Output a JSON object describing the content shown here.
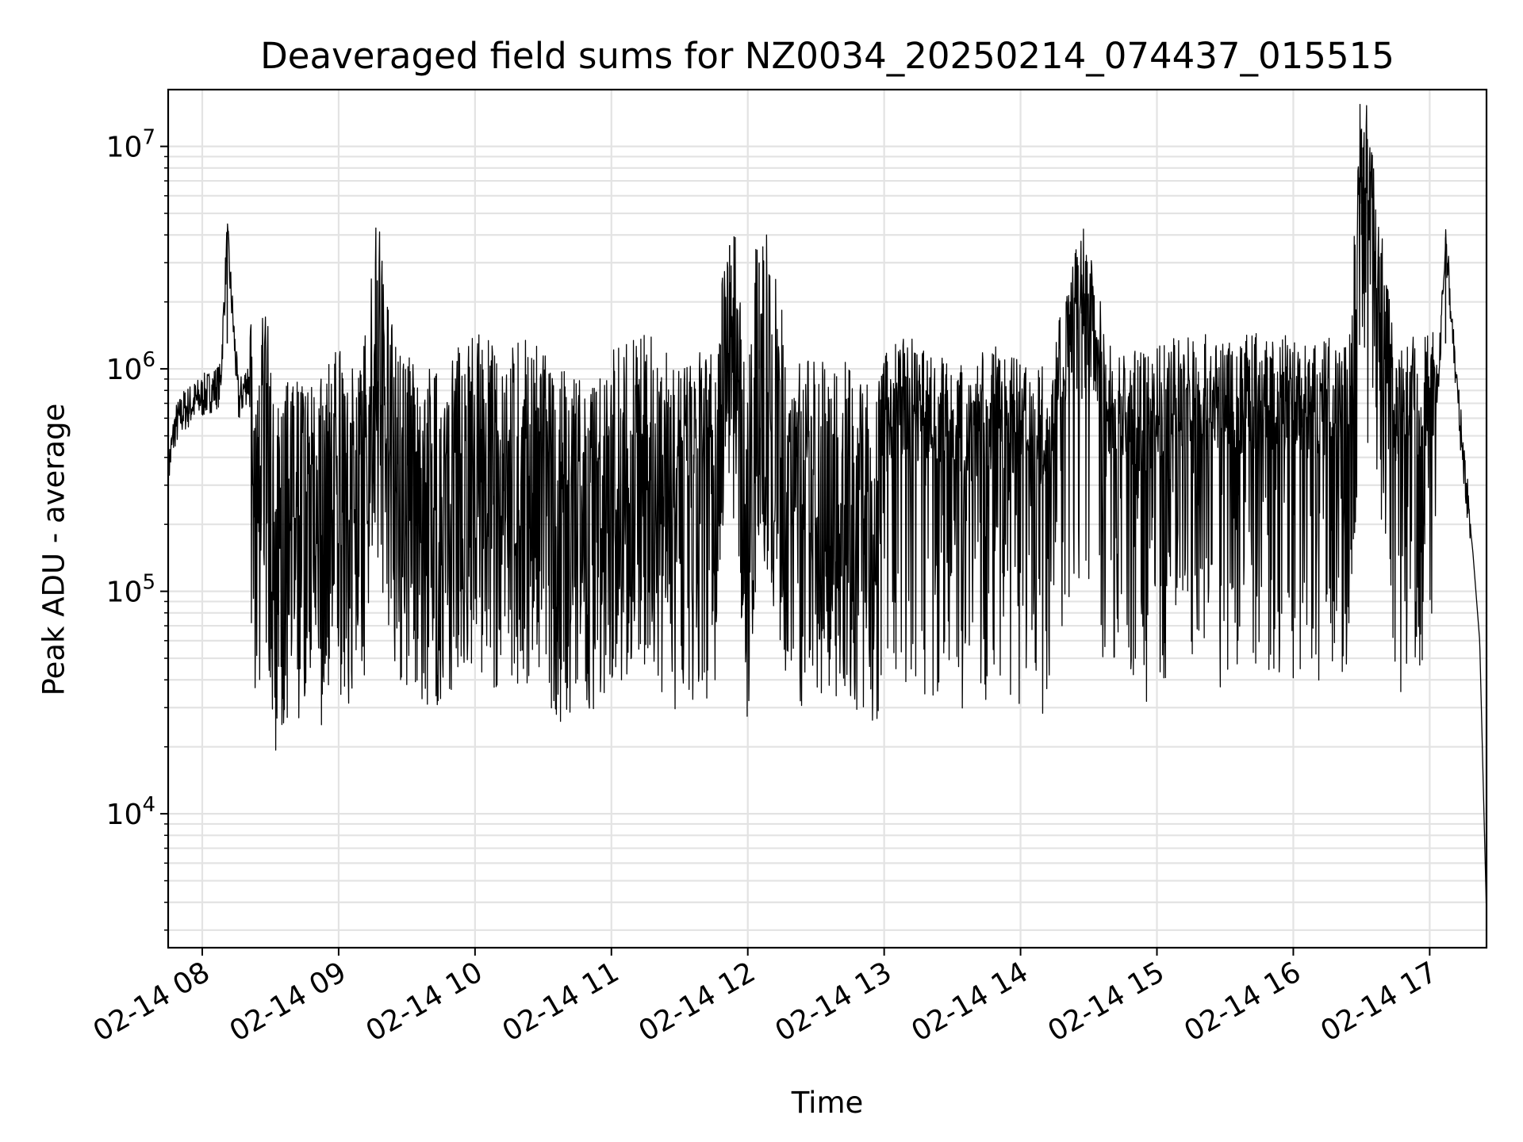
{
  "chart_data": {
    "type": "line",
    "title": "Deaveraged field sums for NZ0034_20250214_074437_015515",
    "xlabel": "Time",
    "ylabel": "Peak ADU - average",
    "yscale": "log",
    "ylim": [
      2500,
      18000000
    ],
    "xlim": [
      "2025-02-14 07:45",
      "2025-02-14 17:25"
    ],
    "x_tick_labels": [
      "02-14 08",
      "02-14 09",
      "02-14 10",
      "02-14 11",
      "02-14 12",
      "02-14 13",
      "02-14 14",
      "02-14 15",
      "02-14 16",
      "02-14 17"
    ],
    "y_ticks": [
      {
        "base": "10",
        "exp": "4",
        "value": 10000
      },
      {
        "base": "10",
        "exp": "5",
        "value": 100000
      },
      {
        "base": "10",
        "exp": "6",
        "value": 1000000
      },
      {
        "base": "10",
        "exp": "7",
        "value": 10000000
      }
    ],
    "grid": true,
    "line_color": "#000000",
    "series": [
      {
        "x": [
          "2025-02-14 07:45",
          "2025-02-14 07:48",
          "2025-02-14 07:52",
          "2025-02-14 07:56",
          "2025-02-14 08:00",
          "2025-02-14 08:04",
          "2025-02-14 08:08",
          "2025-02-14 08:11",
          "2025-02-14 08:16",
          "2025-02-14 08:20",
          "2025-02-14 08:24",
          "2025-02-14 08:28",
          "2025-02-14 08:32",
          "2025-02-14 08:40",
          "2025-02-14 08:50",
          "2025-02-14 09:00",
          "2025-02-14 09:10",
          "2025-02-14 09:17",
          "2025-02-14 09:25",
          "2025-02-14 09:40",
          "2025-02-14 09:55",
          "2025-02-14 10:15",
          "2025-02-14 10:30",
          "2025-02-14 10:35",
          "2025-02-14 10:50",
          "2025-02-14 11:15",
          "2025-02-14 11:30",
          "2025-02-14 11:45",
          "2025-02-14 11:52",
          "2025-02-14 12:00",
          "2025-02-14 12:05",
          "2025-02-14 12:20",
          "2025-02-14 12:40",
          "2025-02-14 12:55",
          "2025-02-14 13:05",
          "2025-02-14 13:20",
          "2025-02-14 13:35",
          "2025-02-14 13:50",
          "2025-02-14 14:10",
          "2025-02-14 14:27",
          "2025-02-14 14:40",
          "2025-02-14 14:55",
          "2025-02-14 15:10",
          "2025-02-14 15:30",
          "2025-02-14 15:50",
          "2025-02-14 16:10",
          "2025-02-14 16:25",
          "2025-02-14 16:30",
          "2025-02-14 16:45",
          "2025-02-14 17:00",
          "2025-02-14 17:04",
          "2025-02-14 17:07",
          "2025-02-14 17:12",
          "2025-02-14 17:16",
          "2025-02-14 17:19",
          "2025-02-14 17:22",
          "2025-02-14 17:24",
          "2025-02-14 17:25"
        ],
        "y": [
          350000,
          550000,
          650000,
          700000,
          750000,
          800000,
          850000,
          3900000,
          700000,
          900000,
          600000,
          1000000,
          300000,
          500000,
          400000,
          600000,
          500000,
          2500000,
          600000,
          500000,
          700000,
          600000,
          700000,
          450000,
          500000,
          700000,
          500000,
          600000,
          3600000,
          400000,
          3000000,
          500000,
          600000,
          400000,
          700000,
          600000,
          500000,
          600000,
          500000,
          2200000,
          600000,
          550000,
          700000,
          650000,
          700000,
          600000,
          750000,
          12000000,
          600000,
          700000,
          900000,
          3900000,
          800000,
          300000,
          150000,
          60000,
          9000,
          3500
        ]
      }
    ]
  }
}
